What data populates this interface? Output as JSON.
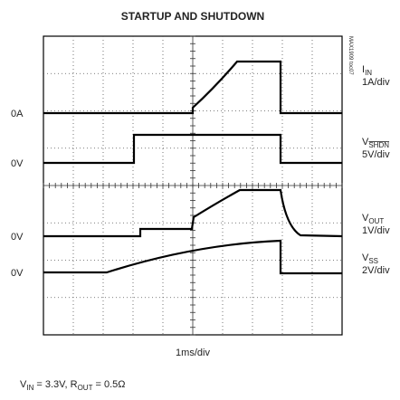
{
  "title": "STARTUP AND SHUTDOWN",
  "code": "MAX1909 toc07",
  "channels": [
    {
      "zero": "0A",
      "name": "I",
      "sub": "IN",
      "scale": "1A/div"
    },
    {
      "zero": "0V",
      "name": "V",
      "sub": "SHDN",
      "scale": "5V/div"
    },
    {
      "zero": "0V",
      "name": "V",
      "sub": "OUT",
      "scale": "1V/div"
    },
    {
      "zero": "0V",
      "name": "V",
      "sub": "SS",
      "scale": "2V/div"
    }
  ],
  "timebase": "1ms/div",
  "note": {
    "parts": [
      "V",
      "IN",
      " = 3.3V, R",
      "OUT",
      " = 0.5Ω"
    ]
  }
}
